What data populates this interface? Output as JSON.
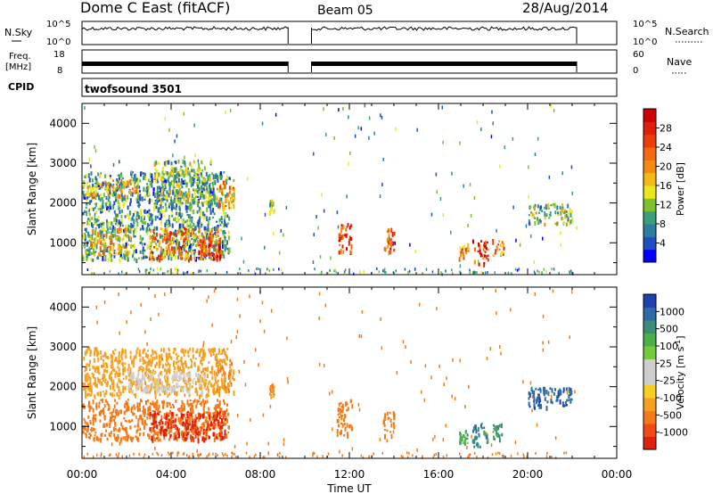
{
  "header": {
    "station": "Dome C East (fitACF)",
    "beam": "Beam 05",
    "date": "28/Aug/2014"
  },
  "sky_panel": {
    "left_label": "N.Sky",
    "right_label": "N.Search",
    "left_ticks": [
      "10^5",
      "10^0"
    ],
    "right_ticks": [
      "10^5",
      "10^0"
    ]
  },
  "freq_panel": {
    "left_label_1": "Freq.",
    "left_label_2": "[MHz]",
    "right_label": "Nave",
    "left_ticks": [
      "18",
      "8"
    ],
    "right_ticks": [
      "60",
      "0"
    ]
  },
  "cpid_panel": {
    "label": "CPID",
    "value": "twofsound 3501"
  },
  "power_colorbar": {
    "label": "Power [dB]",
    "ticks": [
      "28",
      "24",
      "20",
      "16",
      "12",
      "8",
      "4"
    ],
    "colors": [
      "#0000ff",
      "#1f4fbf",
      "#2e7d9e",
      "#3aa07a",
      "#7cc12e",
      "#e8e81a",
      "#f5b915",
      "#f58a10",
      "#f26a0d",
      "#ea3f0a",
      "#e01e0a",
      "#cc0000"
    ]
  },
  "velocity_colorbar": {
    "label": "Velocity [m s",
    "label_sup": "-1",
    "label_close": "]",
    "ticks": [
      "1000",
      "500",
      "100",
      "25",
      "-25",
      "-100",
      "-500",
      "-1000"
    ],
    "colors": [
      "#2040b0",
      "#2f6aa8",
      "#3c8c7a",
      "#4cb04a",
      "#74cc3c",
      "#cfcfcf",
      "#cfcfcf",
      "#f5d020",
      "#f5a020",
      "#f47a18",
      "#ee4c14",
      "#e0200e"
    ]
  },
  "chart_data": [
    {
      "type": "heatmap",
      "panel": "power",
      "ylabel": "Slant Range [km]",
      "y_ticks": [
        1000,
        2000,
        3000,
        4000
      ],
      "ylim": [
        200,
        4500
      ],
      "xlim": [
        0,
        24
      ],
      "blobs": [
        {
          "t0": 0.0,
          "t1": 6.6,
          "r0": 600,
          "r1": 2800,
          "level": 9
        },
        {
          "t0": 0.3,
          "t1": 2.2,
          "r0": 700,
          "r1": 1400,
          "level": 17
        },
        {
          "t0": 3.0,
          "t1": 6.2,
          "r0": 600,
          "r1": 1400,
          "level": 22
        },
        {
          "t0": 5.2,
          "t1": 6.2,
          "r0": 600,
          "r1": 1200,
          "level": 26
        },
        {
          "t0": 0.0,
          "t1": 2.5,
          "r0": 2200,
          "r1": 2600,
          "level": 18
        },
        {
          "t0": 3.2,
          "t1": 5.8,
          "r0": 2000,
          "r1": 3100,
          "level": 12
        },
        {
          "t0": 6.0,
          "t1": 6.8,
          "r0": 1900,
          "r1": 2600,
          "level": 19
        },
        {
          "t0": 8.4,
          "t1": 8.6,
          "r0": 1800,
          "r1": 2100,
          "level": 12
        },
        {
          "t0": 11.5,
          "t1": 12.1,
          "r0": 800,
          "r1": 1500,
          "level": 27
        },
        {
          "t0": 13.5,
          "t1": 14.0,
          "r0": 800,
          "r1": 1400,
          "level": 24
        },
        {
          "t0": 16.9,
          "t1": 17.3,
          "r0": 600,
          "r1": 1000,
          "level": 20
        },
        {
          "t0": 17.5,
          "t1": 18.2,
          "r0": 500,
          "r1": 1100,
          "level": 27
        },
        {
          "t0": 18.4,
          "t1": 18.9,
          "r0": 700,
          "r1": 1100,
          "level": 22
        },
        {
          "t0": 20.0,
          "t1": 22.0,
          "r0": 1500,
          "r1": 2000,
          "level": 12
        }
      ]
    },
    {
      "type": "heatmap",
      "panel": "velocity",
      "ylabel": "Slant Range [km]",
      "xlabel": "Time UT",
      "x_ticks": [
        "00:00",
        "04:00",
        "08:00",
        "12:00",
        "16:00",
        "20:00",
        "00:00"
      ],
      "y_ticks": [
        1000,
        2000,
        3000,
        4000
      ],
      "ylim": [
        200,
        4500
      ],
      "xlim": [
        0,
        24
      ],
      "blobs": [
        {
          "t0": 0.0,
          "t1": 6.6,
          "r0": 700,
          "r1": 1700,
          "level": -150
        },
        {
          "t0": 3.0,
          "t1": 6.4,
          "r0": 700,
          "r1": 1400,
          "level": -600
        },
        {
          "t0": 0.0,
          "t1": 6.5,
          "r0": 1800,
          "r1": 3000,
          "level": -80
        },
        {
          "t0": 2.0,
          "t1": 5.5,
          "r0": 1900,
          "r1": 2400,
          "level": 0
        },
        {
          "t0": 6.0,
          "t1": 6.8,
          "r0": 1900,
          "r1": 2700,
          "level": -100
        },
        {
          "t0": 8.4,
          "t1": 8.6,
          "r0": 1800,
          "r1": 2100,
          "level": -100
        },
        {
          "t0": 11.4,
          "t1": 12.1,
          "r0": 800,
          "r1": 1700,
          "level": -150
        },
        {
          "t0": 13.5,
          "t1": 14.0,
          "r0": 800,
          "r1": 1400,
          "level": -150
        },
        {
          "t0": 16.9,
          "t1": 17.3,
          "r0": 600,
          "r1": 1000,
          "level": 200
        },
        {
          "t0": 17.5,
          "t1": 18.2,
          "r0": 500,
          "r1": 1100,
          "level": 500
        },
        {
          "t0": 18.4,
          "t1": 18.9,
          "r0": 700,
          "r1": 1100,
          "level": 300
        },
        {
          "t0": 20.0,
          "t1": 22.0,
          "r0": 1500,
          "r1": 2000,
          "level": 800
        }
      ]
    }
  ]
}
